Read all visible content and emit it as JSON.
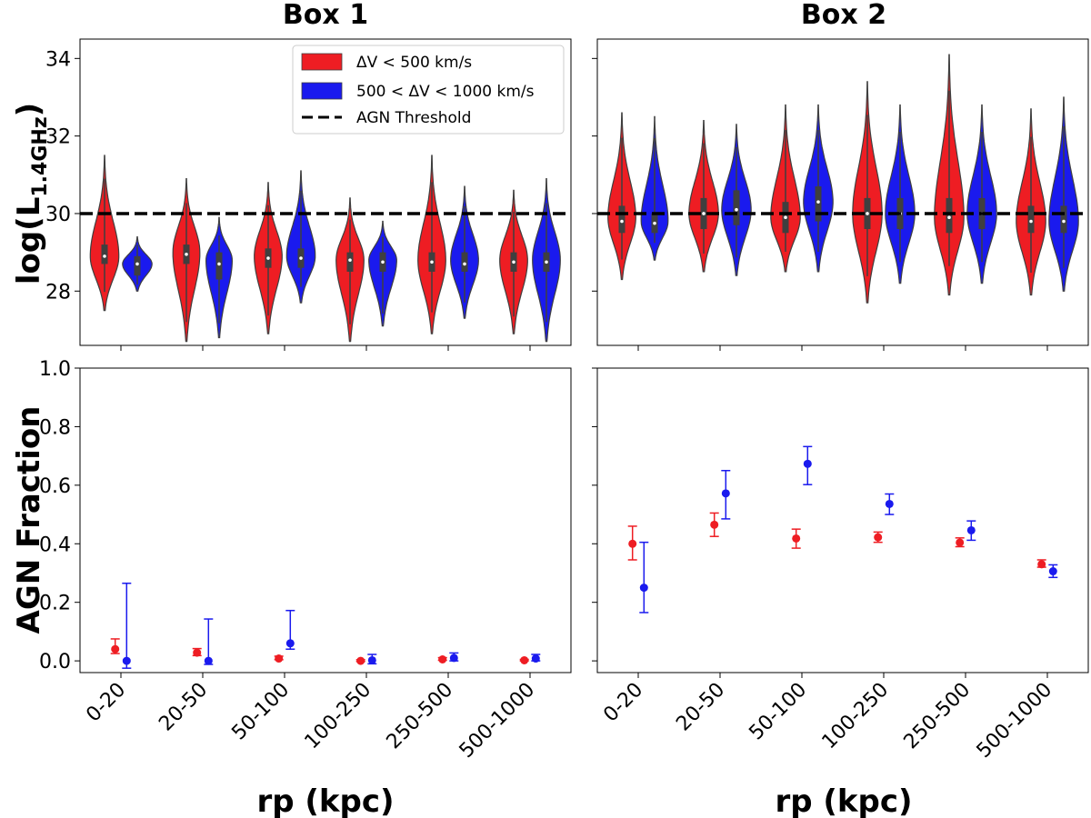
{
  "chart_data": {
    "type": "violin+errorbar",
    "panel_titles": [
      "Box 1",
      "Box 2"
    ],
    "categories": [
      "0-20",
      "20-50",
      "50-100",
      "100-250",
      "250-500",
      "500-1000"
    ],
    "xlabel": "rp (kpc)",
    "top": {
      "ylabel_main": "log(L",
      "ylabel_sub": "1.4GHz",
      "ylabel_close": ")",
      "ylim": [
        26.6,
        34.5
      ],
      "yticks": [
        "28",
        "30",
        "32",
        "34"
      ],
      "threshold": 30,
      "box1": {
        "red": [
          {
            "min": 27.5,
            "max": 31.5,
            "median": 28.9,
            "q1": 28.7,
            "q3": 29.2,
            "mode": 28.9,
            "w": 0.35
          },
          {
            "min": 26.7,
            "max": 30.9,
            "median": 28.95,
            "q1": 28.7,
            "q3": 29.2,
            "mode": 29.0,
            "w": 0.33
          },
          {
            "min": 26.9,
            "max": 30.8,
            "median": 28.85,
            "q1": 28.6,
            "q3": 29.1,
            "mode": 28.9,
            "w": 0.34
          },
          {
            "min": 26.7,
            "max": 30.4,
            "median": 28.8,
            "q1": 28.5,
            "q3": 29.0,
            "mode": 28.8,
            "w": 0.34
          },
          {
            "min": 26.9,
            "max": 31.5,
            "median": 28.75,
            "q1": 28.5,
            "q3": 29.0,
            "mode": 28.8,
            "w": 0.34
          },
          {
            "min": 26.9,
            "max": 30.6,
            "median": 28.75,
            "q1": 28.5,
            "q3": 29.0,
            "mode": 28.8,
            "w": 0.34
          }
        ],
        "blue": [
          {
            "min": 28.0,
            "max": 29.4,
            "median": 28.7,
            "q1": 28.4,
            "q3": 28.9,
            "mode": 28.7,
            "w": 0.36
          },
          {
            "min": 26.8,
            "max": 29.9,
            "median": 28.7,
            "q1": 28.3,
            "q3": 29.0,
            "mode": 28.8,
            "w": 0.32
          },
          {
            "min": 27.7,
            "max": 31.1,
            "median": 28.85,
            "q1": 28.6,
            "q3": 29.1,
            "mode": 28.9,
            "w": 0.35
          },
          {
            "min": 27.1,
            "max": 29.8,
            "median": 28.75,
            "q1": 28.5,
            "q3": 29.0,
            "mode": 28.8,
            "w": 0.34
          },
          {
            "min": 27.3,
            "max": 30.7,
            "median": 28.7,
            "q1": 28.5,
            "q3": 29.0,
            "mode": 28.8,
            "w": 0.34
          },
          {
            "min": 26.7,
            "max": 30.9,
            "median": 28.75,
            "q1": 28.5,
            "q3": 29.0,
            "mode": 28.8,
            "w": 0.34
          }
        ]
      },
      "box2": {
        "red": [
          {
            "min": 28.3,
            "max": 32.6,
            "median": 29.8,
            "q1": 29.5,
            "q3": 30.2,
            "mode": 29.9,
            "w": 0.34
          },
          {
            "min": 28.5,
            "max": 32.4,
            "median": 30.0,
            "q1": 29.6,
            "q3": 30.4,
            "mode": 30.0,
            "w": 0.36
          },
          {
            "min": 28.5,
            "max": 32.8,
            "median": 29.9,
            "q1": 29.5,
            "q3": 30.3,
            "mode": 29.9,
            "w": 0.36
          },
          {
            "min": 27.7,
            "max": 33.4,
            "median": 30.0,
            "q1": 29.6,
            "q3": 30.4,
            "mode": 30.0,
            "w": 0.36
          },
          {
            "min": 27.9,
            "max": 34.1,
            "median": 29.9,
            "q1": 29.5,
            "q3": 30.4,
            "mode": 29.9,
            "w": 0.36
          },
          {
            "min": 27.9,
            "max": 32.7,
            "median": 29.8,
            "q1": 29.5,
            "q3": 30.2,
            "mode": 29.8,
            "w": 0.36
          }
        ],
        "blue": [
          {
            "min": 28.8,
            "max": 32.5,
            "median": 29.75,
            "q1": 29.5,
            "q3": 30.0,
            "mode": 29.8,
            "w": 0.33
          },
          {
            "min": 28.4,
            "max": 32.3,
            "median": 30.1,
            "q1": 29.7,
            "q3": 30.6,
            "mode": 30.1,
            "w": 0.36
          },
          {
            "min": 28.5,
            "max": 32.8,
            "median": 30.3,
            "q1": 29.8,
            "q3": 30.7,
            "mode": 30.3,
            "w": 0.36
          },
          {
            "min": 28.2,
            "max": 32.8,
            "median": 30.0,
            "q1": 29.6,
            "q3": 30.4,
            "mode": 30.0,
            "w": 0.36
          },
          {
            "min": 28.2,
            "max": 32.8,
            "median": 30.0,
            "q1": 29.6,
            "q3": 30.4,
            "mode": 30.0,
            "w": 0.36
          },
          {
            "min": 28.0,
            "max": 33.0,
            "median": 29.8,
            "q1": 29.5,
            "q3": 30.2,
            "mode": 29.8,
            "w": 0.36
          }
        ]
      }
    },
    "bottom": {
      "ylabel": "AGN Fraction",
      "ylim": [
        -0.04,
        1.0
      ],
      "yticks": [
        "0.0",
        "0.2",
        "0.4",
        "0.6",
        "0.8",
        "1.0"
      ],
      "box1": {
        "red": [
          {
            "y": 0.04,
            "lo": 0.025,
            "hi": 0.075
          },
          {
            "y": 0.028,
            "lo": 0.018,
            "hi": 0.042
          },
          {
            "y": 0.008,
            "lo": 0.004,
            "hi": 0.016
          },
          {
            "y": 0.0,
            "lo": -0.002,
            "hi": 0.004
          },
          {
            "y": 0.005,
            "lo": 0.002,
            "hi": 0.011
          },
          {
            "y": 0.002,
            "lo": 0.0,
            "hi": 0.005
          }
        ],
        "blue": [
          {
            "y": 0.0,
            "lo": -0.025,
            "hi": 0.265
          },
          {
            "y": 0.0,
            "lo": -0.012,
            "hi": 0.143
          },
          {
            "y": 0.06,
            "lo": 0.04,
            "hi": 0.172
          },
          {
            "y": 0.002,
            "lo": -0.01,
            "hi": 0.022
          },
          {
            "y": 0.01,
            "lo": 0.0,
            "hi": 0.027
          },
          {
            "y": 0.008,
            "lo": 0.0,
            "hi": 0.022
          }
        ]
      },
      "box2": {
        "red": [
          {
            "y": 0.4,
            "lo": 0.345,
            "hi": 0.46
          },
          {
            "y": 0.465,
            "lo": 0.425,
            "hi": 0.505
          },
          {
            "y": 0.418,
            "lo": 0.385,
            "hi": 0.45
          },
          {
            "y": 0.422,
            "lo": 0.405,
            "hi": 0.44
          },
          {
            "y": 0.404,
            "lo": 0.39,
            "hi": 0.42
          },
          {
            "y": 0.33,
            "lo": 0.32,
            "hi": 0.345
          }
        ],
        "blue": [
          {
            "y": 0.25,
            "lo": 0.165,
            "hi": 0.405
          },
          {
            "y": 0.572,
            "lo": 0.485,
            "hi": 0.65
          },
          {
            "y": 0.673,
            "lo": 0.602,
            "hi": 0.732
          },
          {
            "y": 0.536,
            "lo": 0.5,
            "hi": 0.57
          },
          {
            "y": 0.446,
            "lo": 0.412,
            "hi": 0.478
          },
          {
            "y": 0.306,
            "lo": 0.285,
            "hi": 0.328
          }
        ]
      }
    },
    "legend": {
      "position": "top-right of Box 1 top panel",
      "items": [
        {
          "label": "ΔV < 500 km/s",
          "kind": "patch",
          "color": "#ee1d23"
        },
        {
          "label": "500 < ΔV < 1000 km/s",
          "kind": "patch",
          "color": "#1a1aee"
        },
        {
          "label": "AGN Threshold",
          "kind": "dash",
          "color": "#000000"
        }
      ]
    },
    "colors": {
      "red": "#ee1d23",
      "blue": "#1a1aee",
      "inner_box": "#3f3f3f",
      "outline": "#3f3f3f"
    }
  }
}
